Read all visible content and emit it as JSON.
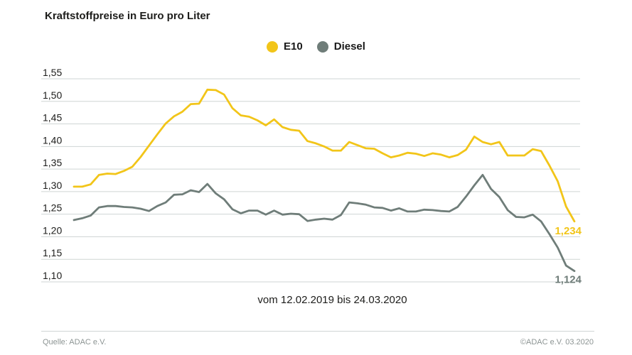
{
  "title": "Kraftstoffpreise in Euro pro Liter",
  "subtitle": "vom 12.02.2019 bis 24.03.2020",
  "footer": {
    "source": "Quelle: ADAC e.V.",
    "copyright": "©ADAC e.V.  03.2020"
  },
  "colors": {
    "e10": "#f2c519",
    "diesel": "#6f7d79",
    "grid": "#cfd5d4"
  },
  "chart_data": {
    "type": "line",
    "title": "Kraftstoffpreise in Euro pro Liter",
    "xlabel": "vom 12.02.2019 bis 24.03.2020",
    "ylabel": "",
    "ylim": [
      1.1,
      1.55
    ],
    "yticks": [
      "1,10",
      "1,15",
      "1,20",
      "1,25",
      "1,30",
      "1,35",
      "1,40",
      "1,45",
      "1,50",
      "1,55"
    ],
    "ytick_values": [
      1.1,
      1.15,
      1.2,
      1.25,
      1.3,
      1.35,
      1.4,
      1.45,
      1.5,
      1.55
    ],
    "grid": true,
    "legend_position": "top-center",
    "x_start": "12.02.2019",
    "x_end": "24.03.2020",
    "series": [
      {
        "name": "E10",
        "color": "#f2c519",
        "end_label": "1,234",
        "values": [
          1.311,
          1.311,
          1.316,
          1.337,
          1.34,
          1.339,
          1.346,
          1.355,
          1.377,
          1.402,
          1.427,
          1.451,
          1.467,
          1.477,
          1.494,
          1.495,
          1.526,
          1.525,
          1.515,
          1.485,
          1.469,
          1.466,
          1.458,
          1.447,
          1.46,
          1.443,
          1.437,
          1.435,
          1.412,
          1.407,
          1.4,
          1.391,
          1.391,
          1.41,
          1.403,
          1.396,
          1.395,
          1.385,
          1.376,
          1.38,
          1.386,
          1.384,
          1.379,
          1.385,
          1.382,
          1.376,
          1.381,
          1.393,
          1.422,
          1.41,
          1.405,
          1.41,
          1.38,
          1.38,
          1.38,
          1.394,
          1.39,
          1.358,
          1.323,
          1.267,
          1.234
        ]
      },
      {
        "name": "Diesel",
        "color": "#6f7d79",
        "end_label": "1,124",
        "values": [
          1.237,
          1.241,
          1.247,
          1.265,
          1.268,
          1.268,
          1.266,
          1.265,
          1.262,
          1.257,
          1.268,
          1.276,
          1.293,
          1.294,
          1.303,
          1.299,
          1.317,
          1.296,
          1.283,
          1.261,
          1.252,
          1.258,
          1.258,
          1.249,
          1.258,
          1.249,
          1.251,
          1.25,
          1.235,
          1.238,
          1.24,
          1.238,
          1.248,
          1.276,
          1.274,
          1.271,
          1.265,
          1.264,
          1.258,
          1.263,
          1.256,
          1.256,
          1.26,
          1.259,
          1.257,
          1.256,
          1.266,
          1.289,
          1.314,
          1.337,
          1.306,
          1.288,
          1.259,
          1.244,
          1.243,
          1.249,
          1.234,
          1.206,
          1.176,
          1.136,
          1.124
        ]
      }
    ]
  }
}
